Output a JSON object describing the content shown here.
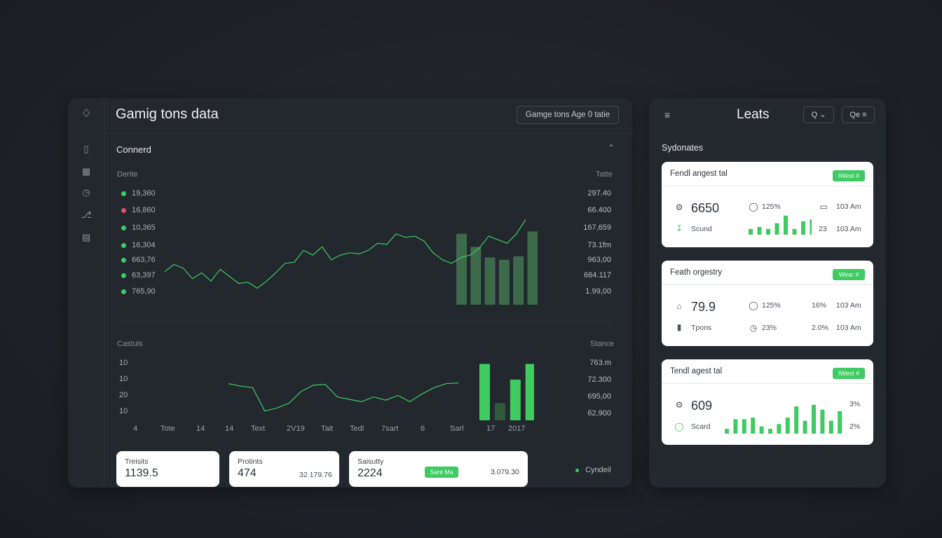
{
  "main": {
    "title": "Gamig tons data",
    "select_label": "Gamge tons Age 0 tatie",
    "section_title": "Connerd",
    "chart1": {
      "left_header": "Derite",
      "right_header": "Tatte",
      "legend": [
        {
          "label": "19,360",
          "color": "#3fca62"
        },
        {
          "label": "16,860",
          "color": "#e0506b"
        },
        {
          "label": "10,365",
          "color": "#3fca62"
        },
        {
          "label": "16,304",
          "color": "#3fca62"
        },
        {
          "label": "663,76",
          "color": "#3fca62"
        },
        {
          "label": "63,397",
          "color": "#3fca62"
        },
        {
          "label": "765,90",
          "color": "#3fca62"
        }
      ],
      "right_values": [
        "297.40",
        "66.400",
        "167,659",
        "73.1fm",
        "963,00",
        "664.117",
        "1.99,00"
      ]
    },
    "chart2": {
      "left_header": "Castuls",
      "right_header": "Stance",
      "y_labels": [
        "10",
        "10",
        "20",
        "10"
      ],
      "right_values": [
        "763.m",
        "72.300",
        "695,00",
        "62,900"
      ],
      "x_labels": [
        "4",
        "Tote",
        "14",
        "14",
        "Text",
        "2V19",
        "Tait",
        "Tedl",
        "7sart",
        "6",
        "Sarl",
        "17",
        "2017"
      ]
    },
    "cards": [
      {
        "label": "Treisits",
        "value": "1139.5"
      },
      {
        "label": "Protints",
        "value": "474",
        "extra": "32 179.76"
      },
      {
        "label": "Saisutty",
        "value": "2224",
        "pill": "Sant Ma",
        "extra": "3.079.30"
      }
    ],
    "footer_legend": "Cyndeil",
    "chart_data": [
      {
        "type": "line",
        "series": [
          {
            "values": [
              28,
              34,
              31,
              22,
              27,
              20,
              30,
              24,
              18,
              19,
              14,
              20,
              27,
              35,
              36,
              46,
              42,
              49,
              38,
              42,
              44,
              43,
              46,
              52,
              51,
              60,
              57,
              58,
              54,
              44,
              38,
              35,
              40,
              42,
              48,
              58,
              55,
              52,
              60,
              72
            ]
          }
        ],
        "bars": [
          60,
          49,
          40,
          38,
          41,
          62,
          40,
          49,
          48,
          62,
          58,
          75
        ]
      },
      {
        "type": "line",
        "series": [
          {
            "values": [
              45,
              42,
              40,
              10,
              14,
              20,
              35,
              43,
              44,
              28,
              25,
              22,
              28,
              24,
              30,
              22,
              32,
              40,
              45,
              46
            ]
          }
        ],
        "bars": [
          72,
          22,
          52,
          72,
          20,
          42,
          28,
          82
        ]
      }
    ]
  },
  "side": {
    "menu_icon": "hamburger-icon",
    "title": "Leats",
    "search_label": "Q ⌄",
    "filter_label": "Qe ≡",
    "section_title": "Sydonates",
    "cards": [
      {
        "title": "Fendl angest tal",
        "pill": "IWest #",
        "big": "6650",
        "sub": "Scund",
        "m1": "125%",
        "m2": "103 Am",
        "m3": "23",
        "m4": "103 Am",
        "bars": [
          6,
          8,
          6,
          12,
          20,
          6,
          14,
          16
        ]
      },
      {
        "title": "Feath orgestry",
        "pill": "Wear #",
        "big": "79.9",
        "sub": "Tpons",
        "m1": "125%",
        "m2": "16%",
        "m3": "103 Am",
        "m4": "23%",
        "m5": "2.0%",
        "m6": "103 Am"
      },
      {
        "title": "Tendl agest tal",
        "pill": "IWest #",
        "big": "609",
        "sub": "Scard",
        "m1": "3%",
        "m2": "2%",
        "bars": [
          6,
          18,
          18,
          20,
          9,
          6,
          12,
          20,
          34,
          16,
          36,
          30,
          16,
          28,
          36,
          40
        ]
      }
    ]
  }
}
